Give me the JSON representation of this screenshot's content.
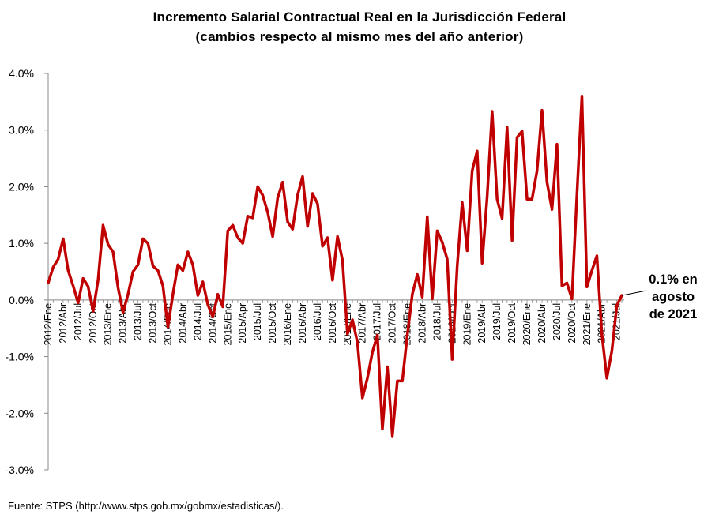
{
  "chart_data": {
    "type": "line",
    "title": "Incremento Salarial Contractual  Real en la Jurisdicción  Federal",
    "subtitle": "(cambios respecto al mismo mes del año anterior)",
    "xlabel": "",
    "ylabel": "",
    "ylim": [
      -3.0,
      4.0
    ],
    "yticks": [
      "-3.0%",
      "-2.0%",
      "-1.0%",
      "0.0%",
      "1.0%",
      "2.0%",
      "3.0%",
      "4.0%"
    ],
    "ytick_values": [
      -3,
      -2,
      -1,
      0,
      1,
      2,
      3,
      4
    ],
    "grid": false,
    "x_tick_labels": [
      "2012/Ene",
      "2012/Abr",
      "2012/Jul",
      "2012/Oct",
      "2013/Ene",
      "2013/Abr",
      "2013/Jul",
      "2013/Oct",
      "2014/Ene",
      "2014/Abr",
      "2014/Jul",
      "2014/Oct",
      "2015/Ene",
      "2015/Apr",
      "2015/Jul",
      "2015/Oct",
      "2016/Ene",
      "2016/Abr",
      "2016/Jul",
      "2016/Oct",
      "2017/Ene",
      "2017/Abr",
      "2017/Jul",
      "2017/Oct",
      "2018/Ene",
      "2018/Abr",
      "2018/Jul",
      "2018/Oct",
      "2019/Ene",
      "2019/Abr",
      "2019/Jul",
      "2019/Oct",
      "2020/Ene",
      "2020/Abr",
      "2020/Jul",
      "2020/Oct",
      "2021/Ene",
      "2021/Abr",
      "2021/Jul"
    ],
    "series": [
      {
        "color": "#c00000",
        "values": [
          0.3,
          0.58,
          0.72,
          1.08,
          0.52,
          0.25,
          -0.05,
          0.38,
          0.24,
          -0.2,
          0.35,
          1.32,
          0.98,
          0.85,
          0.22,
          -0.22,
          0.1,
          0.5,
          0.62,
          1.08,
          1.0,
          0.6,
          0.52,
          0.25,
          -0.48,
          0.1,
          0.62,
          0.52,
          0.85,
          0.62,
          0.08,
          0.32,
          -0.08,
          -0.3,
          0.1,
          -0.12,
          1.22,
          1.32,
          1.1,
          1.0,
          1.48,
          1.45,
          2.0,
          1.85,
          1.55,
          1.12,
          1.8,
          2.08,
          1.38,
          1.25,
          1.85,
          2.18,
          1.3,
          1.88,
          1.7,
          0.95,
          1.1,
          0.35,
          1.12,
          0.7,
          -0.6,
          -0.35,
          -0.75,
          -1.73,
          -1.38,
          -0.92,
          -0.62,
          -2.28,
          -1.18,
          -2.4,
          -1.43,
          -1.43,
          -0.62,
          0.1,
          0.45,
          0.05,
          1.47,
          0.02,
          1.22,
          1.02,
          0.72,
          -1.05,
          0.6,
          1.72,
          0.87,
          2.28,
          2.63,
          0.65,
          1.82,
          3.33,
          1.78,
          1.44,
          3.05,
          1.05,
          2.87,
          2.98,
          1.78,
          1.78,
          2.28,
          3.35,
          2.08,
          1.6,
          2.75,
          0.25,
          0.3,
          0.02,
          1.85,
          3.6,
          0.23,
          0.52,
          0.78,
          -0.6,
          -1.38,
          -0.9,
          -0.1,
          0.08
        ]
      }
    ],
    "annotation": [
      "0.1% en",
      "agosto",
      "de 2021"
    ]
  },
  "source": "Fuente: STPS (http://www.stps.gob.mx/gobmx/estadisticas/)."
}
